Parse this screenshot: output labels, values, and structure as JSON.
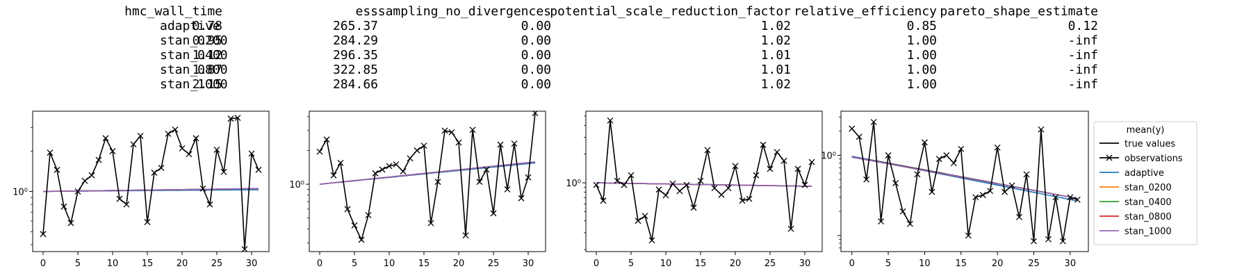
{
  "table": {
    "columns": [
      "hmc_wall_time",
      "ess",
      "sampling_no_divergences",
      "potential_scale_reduction_factor",
      "relative_efficiency",
      "pareto_shape_estimate"
    ],
    "rows": [
      {
        "label": "adaptive",
        "values": [
          "0.78",
          "265.37",
          "0.00",
          "1.02",
          "0.85",
          "0.12"
        ]
      },
      {
        "label": "stan_0200",
        "values": [
          "0.95",
          "284.29",
          "0.00",
          "1.02",
          "1.00",
          "-inf"
        ]
      },
      {
        "label": "stan_0400",
        "values": [
          "1.12",
          "296.35",
          "0.00",
          "1.01",
          "1.00",
          "-inf"
        ]
      },
      {
        "label": "stan_0800",
        "values": [
          "1.87",
          "322.85",
          "0.00",
          "1.01",
          "1.00",
          "-inf"
        ]
      },
      {
        "label": "stan_1000",
        "values": [
          "2.15",
          "284.66",
          "0.00",
          "1.02",
          "1.00",
          "-inf"
        ]
      }
    ]
  },
  "legend": {
    "title": "mean(y)",
    "entries": [
      {
        "label": "true values",
        "color": "#000000",
        "marker": "none"
      },
      {
        "label": "observations",
        "color": "#000000",
        "marker": "x"
      },
      {
        "label": "adaptive",
        "color": "#1f77b4",
        "marker": "none"
      },
      {
        "label": "stan_0200",
        "color": "#ff7f0e",
        "marker": "none"
      },
      {
        "label": "stan_0400",
        "color": "#2ca02c",
        "marker": "none"
      },
      {
        "label": "stan_0800",
        "color": "#d62728",
        "marker": "none"
      },
      {
        "label": "stan_1000",
        "color": "#9467bd",
        "marker": "none"
      }
    ]
  },
  "chart_data": [
    {
      "type": "line",
      "yscale": "log",
      "xlim": [
        -1.5,
        32.5
      ],
      "ylim_log10": [
        -0.45,
        0.6
      ],
      "xticks": [
        0,
        5,
        10,
        15,
        20,
        25,
        30
      ],
      "yticks": [
        {
          "value": 1,
          "label": "10⁰"
        }
      ],
      "x": [
        0,
        1,
        2,
        3,
        4,
        5,
        6,
        7,
        8,
        9,
        10,
        11,
        12,
        13,
        14,
        15,
        16,
        17,
        18,
        19,
        20,
        21,
        22,
        23,
        24,
        25,
        26,
        27,
        28,
        29,
        30,
        31
      ],
      "observations": [
        0.48,
        1.95,
        1.45,
        0.77,
        0.58,
        1.0,
        1.2,
        1.32,
        1.72,
        2.5,
        2.0,
        0.88,
        0.8,
        2.25,
        2.6,
        0.59,
        1.38,
        1.5,
        2.7,
        2.9,
        2.1,
        1.9,
        2.5,
        1.05,
        0.8,
        2.05,
        1.4,
        3.5,
        3.55,
        0.37,
        1.92,
        1.45
      ],
      "series": [
        {
          "name": "true values",
          "color": "#000000",
          "start": 1.0,
          "end": 1.04
        },
        {
          "name": "adaptive",
          "color": "#1f77b4",
          "start": 1.0,
          "end": 1.03
        },
        {
          "name": "stan_0200",
          "color": "#ff7f0e",
          "start": 1.0,
          "end": 1.05
        },
        {
          "name": "stan_0400",
          "color": "#2ca02c",
          "start": 1.0,
          "end": 1.05
        },
        {
          "name": "stan_0800",
          "color": "#d62728",
          "start": 1.0,
          "end": 1.05
        },
        {
          "name": "stan_1000",
          "color": "#9467bd",
          "start": 1.0,
          "end": 1.05
        }
      ]
    },
    {
      "type": "line",
      "yscale": "log",
      "xlim": [
        -1.5,
        32.5
      ],
      "ylim_log10": [
        -0.6,
        0.65
      ],
      "xticks": [
        0,
        5,
        10,
        15,
        20,
        25,
        30
      ],
      "yticks": [
        {
          "value": 1,
          "label": "10⁰"
        }
      ],
      "x": [
        0,
        1,
        2,
        3,
        4,
        5,
        6,
        7,
        8,
        9,
        10,
        11,
        12,
        13,
        14,
        15,
        16,
        17,
        18,
        19,
        20,
        21,
        22,
        23,
        24,
        25,
        26,
        27,
        28,
        29,
        30,
        31
      ],
      "observations": [
        1.95,
        2.5,
        1.2,
        1.55,
        0.6,
        0.43,
        0.32,
        0.53,
        1.25,
        1.35,
        1.45,
        1.5,
        1.3,
        1.7,
        2.0,
        2.2,
        0.45,
        1.05,
        3.0,
        2.9,
        2.35,
        0.35,
        3.05,
        1.05,
        1.35,
        0.55,
        2.25,
        0.9,
        2.3,
        0.75,
        1.15,
        4.3
      ],
      "series": [
        {
          "name": "true values",
          "color": "#000000",
          "start": 1.0,
          "end": 1.55
        },
        {
          "name": "adaptive",
          "color": "#1f77b4",
          "start": 1.0,
          "end": 1.55
        },
        {
          "name": "stan_0200",
          "color": "#ff7f0e",
          "start": 1.0,
          "end": 1.58
        },
        {
          "name": "stan_0400",
          "color": "#2ca02c",
          "start": 1.0,
          "end": 1.58
        },
        {
          "name": "stan_0800",
          "color": "#d62728",
          "start": 1.0,
          "end": 1.58
        },
        {
          "name": "stan_1000",
          "color": "#9467bd",
          "start": 1.0,
          "end": 1.58
        }
      ]
    },
    {
      "type": "line",
      "yscale": "log",
      "xlim": [
        -1.5,
        32.5
      ],
      "ylim_log10": [
        -0.72,
        0.75
      ],
      "xticks": [
        0,
        5,
        10,
        15,
        20,
        25,
        30
      ],
      "yticks": [
        {
          "value": 1,
          "label": "10⁰"
        }
      ],
      "x": [
        0,
        1,
        2,
        3,
        4,
        5,
        6,
        7,
        8,
        9,
        10,
        11,
        12,
        13,
        14,
        15,
        16,
        17,
        18,
        19,
        20,
        21,
        22,
        23,
        24,
        25,
        26,
        27,
        28,
        29,
        30,
        31
      ],
      "observations": [
        0.95,
        0.65,
        4.5,
        1.05,
        0.95,
        1.2,
        0.4,
        0.45,
        0.25,
        0.85,
        0.74,
        0.98,
        0.82,
        0.95,
        0.55,
        1.05,
        2.2,
        0.88,
        0.75,
        0.88,
        1.5,
        0.65,
        0.68,
        1.2,
        2.5,
        1.4,
        2.1,
        1.7,
        0.33,
        1.4,
        0.95,
        1.65
      ],
      "series": [
        {
          "name": "true values",
          "color": "#000000",
          "start": 1.0,
          "end": 0.92
        },
        {
          "name": "adaptive",
          "color": "#1f77b4",
          "start": 1.0,
          "end": 0.92
        },
        {
          "name": "stan_0200",
          "color": "#ff7f0e",
          "start": 1.0,
          "end": 0.92
        },
        {
          "name": "stan_0400",
          "color": "#2ca02c",
          "start": 1.0,
          "end": 0.92
        },
        {
          "name": "stan_0800",
          "color": "#d62728",
          "start": 1.0,
          "end": 0.92
        },
        {
          "name": "stan_1000",
          "color": "#9467bd",
          "start": 1.0,
          "end": 0.92
        }
      ]
    },
    {
      "type": "line",
      "yscale": "log",
      "xlim": [
        -1.5,
        32.5
      ],
      "ylim_log10": [
        -1.2,
        0.55
      ],
      "xticks": [
        0,
        5,
        10,
        15,
        20,
        25,
        30
      ],
      "yticks": [
        {
          "value": 1,
          "label": "10⁰"
        }
      ],
      "x": [
        0,
        1,
        2,
        3,
        4,
        5,
        6,
        7,
        8,
        9,
        10,
        11,
        12,
        13,
        14,
        15,
        16,
        17,
        18,
        19,
        20,
        21,
        22,
        23,
        24,
        25,
        26,
        27,
        28,
        29,
        30,
        31
      ],
      "observations": [
        2.15,
        1.7,
        0.5,
        2.6,
        0.15,
        1.0,
        0.45,
        0.2,
        0.14,
        0.58,
        1.45,
        0.35,
        0.9,
        1.0,
        0.8,
        1.2,
        0.1,
        0.3,
        0.32,
        0.36,
        1.25,
        0.35,
        0.42,
        0.17,
        0.58,
        0.085,
        2.1,
        0.09,
        0.3,
        0.085,
        0.3,
        0.28
      ],
      "series": [
        {
          "name": "true values",
          "color": "#000000",
          "start": 0.97,
          "end": 0.29
        },
        {
          "name": "adaptive",
          "color": "#1f77b4",
          "start": 0.97,
          "end": 0.27
        },
        {
          "name": "stan_0200",
          "color": "#ff7f0e",
          "start": 0.95,
          "end": 0.29
        },
        {
          "name": "stan_0400",
          "color": "#2ca02c",
          "start": 0.95,
          "end": 0.29
        },
        {
          "name": "stan_0800",
          "color": "#d62728",
          "start": 0.95,
          "end": 0.29
        },
        {
          "name": "stan_1000",
          "color": "#9467bd",
          "start": 0.95,
          "end": 0.29
        }
      ]
    }
  ]
}
